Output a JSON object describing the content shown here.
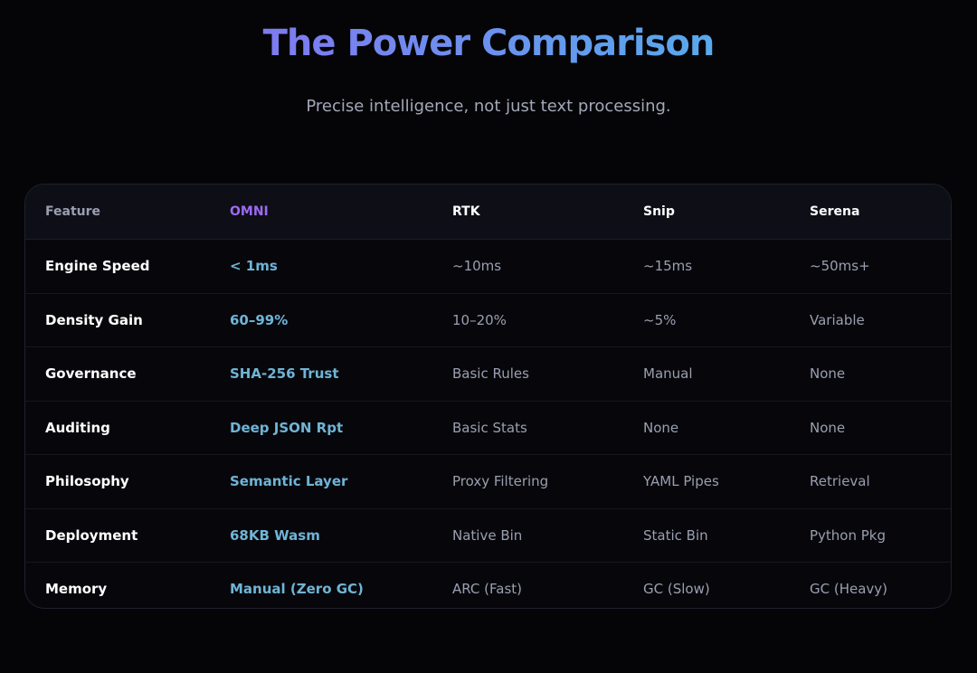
{
  "header": {
    "title": "The Power Comparison",
    "subtitle": "Precise intelligence, not just text processing."
  },
  "table": {
    "columns": [
      "Feature",
      "OMNI",
      "RTK",
      "Snip",
      "Serena"
    ],
    "rows": [
      [
        "Engine Speed",
        "< 1ms",
        "~10ms",
        "~15ms",
        "~50ms+"
      ],
      [
        "Density Gain",
        "60–99%",
        "10–20%",
        "~5%",
        "Variable"
      ],
      [
        "Governance",
        "SHA-256 Trust",
        "Basic Rules",
        "Manual",
        "None"
      ],
      [
        "Auditing",
        "Deep JSON Rpt",
        "Basic Stats",
        "None",
        "None"
      ],
      [
        "Philosophy",
        "Semantic Layer",
        "Proxy Filtering",
        "YAML Pipes",
        "Retrieval"
      ],
      [
        "Deployment",
        "68KB Wasm",
        "Native Bin",
        "Static Bin",
        "Python Pkg"
      ],
      [
        "Memory",
        "Manual (Zero GC)",
        "ARC (Fast)",
        "GC (Slow)",
        "GC (Heavy)"
      ]
    ]
  },
  "colors": {
    "background": "#050508",
    "omni_header": "#9d6af2",
    "omni_value": "#6fb4d6",
    "title_gradient_start": "#8b5cf6",
    "title_gradient_end": "#60c6e4"
  }
}
